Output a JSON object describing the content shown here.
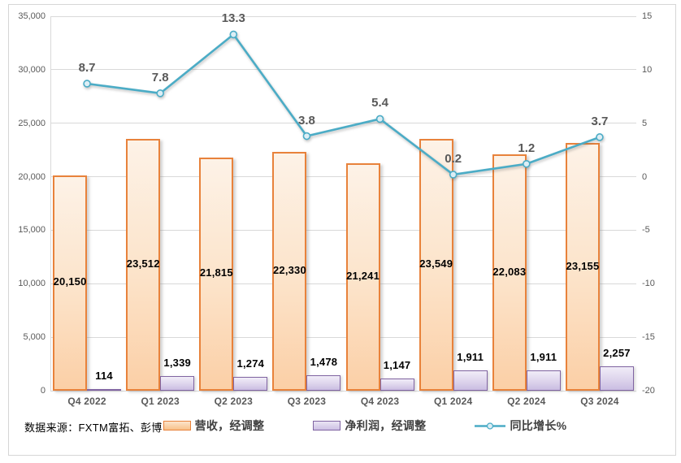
{
  "chart_data": {
    "type": "combo-bar-line",
    "title": "",
    "categories": [
      "Q4 2022",
      "Q1 2023",
      "Q2 2023",
      "Q3 2023",
      "Q4 2023",
      "Q1 2024",
      "Q2 2024",
      "Q3 2024"
    ],
    "series": [
      {
        "name": "营收，经调整",
        "type": "bar",
        "axis": "left",
        "values": [
          20150,
          23512,
          21815,
          22330,
          21241,
          23549,
          22083,
          23155
        ],
        "labels": [
          "20,150",
          "23,512",
          "21,815",
          "22,330",
          "21,241",
          "23,549",
          "22,083",
          "23,155"
        ],
        "border_color": "#e8823b"
      },
      {
        "name": "净利润，经调整",
        "type": "bar",
        "axis": "left",
        "values": [
          114,
          1339,
          1274,
          1478,
          1147,
          1911,
          1911,
          2257
        ],
        "labels": [
          "114",
          "1,339",
          "1,274",
          "1,478",
          "1,147",
          "1,911",
          "1,911",
          "2,257"
        ],
        "border_color": "#8064a2"
      },
      {
        "name": "同比增长%",
        "type": "line",
        "axis": "right",
        "values": [
          8.7,
          7.8,
          13.3,
          3.8,
          5.4,
          0.2,
          1.2,
          3.7
        ],
        "labels": [
          "8.7",
          "7.8",
          "13.3",
          "3.8",
          "5.4",
          "0.2",
          "1.2",
          "3.7"
        ],
        "line_color": "#4bacc6",
        "marker_fill": "#ddeef5"
      }
    ],
    "left_axis": {
      "min": 0,
      "max": 35000,
      "step": 5000,
      "tick_labels": [
        "35,000",
        "30,000",
        "25,000",
        "20,000",
        "15,000",
        "10,000",
        "5,000",
        "0"
      ]
    },
    "right_axis": {
      "min": -20,
      "max": 15,
      "step": 5,
      "tick_labels": [
        "15",
        "10",
        "5",
        "0",
        "-5",
        "-10",
        "-15",
        "-20"
      ]
    },
    "grid": true,
    "gridline_color": "#d9d9d9",
    "legend_position": "bottom"
  },
  "legend": {
    "revenue": "营收，经调整",
    "net_profit": "净利润，经调整",
    "yoy": "同比增长%"
  },
  "footer": {
    "source": "数据来源：FXTM富拓、彭博"
  },
  "colors": {
    "revenue_border": "#e8823b",
    "profit_border": "#8064a2",
    "line": "#4bacc6",
    "grid": "#d9d9d9",
    "axis_text": "#595959"
  }
}
